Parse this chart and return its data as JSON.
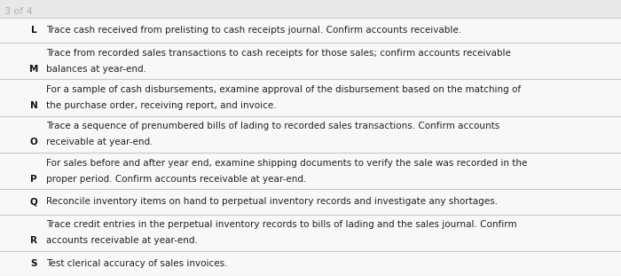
{
  "header": "3 of 4",
  "header_color": "#b0b0b0",
  "background_color": "#f0f0f0",
  "content_bg": "#f7f7f7",
  "rows": [
    {
      "letter": "L",
      "line1": "Trace cash received from prelisting to cash receipts journal. Confirm accounts receivable.",
      "line2": null
    },
    {
      "letter": "M",
      "line1": "Trace from recorded sales transactions to cash receipts for those sales; confirm accounts receivable",
      "line2": "balances at year-end."
    },
    {
      "letter": "N",
      "line1": "For a sample of cash disbursements, examine approval of the disbursement based on the matching of",
      "line2": "the purchase order, receiving report, and invoice."
    },
    {
      "letter": "O",
      "line1": "Trace a sequence of prenumbered bills of lading to recorded sales transactions. Confirm accounts",
      "line2": "receivable at year-end."
    },
    {
      "letter": "P",
      "line1": "For sales before and after year end, examine shipping documents to verify the sale was recorded in the",
      "line2": "proper period. Confirm accounts receivable at year-end."
    },
    {
      "letter": "Q",
      "line1": "Reconcile inventory items on hand to perpetual inventory records and investigate any shortages.",
      "line2": null
    },
    {
      "letter": "R",
      "line1": "Trace credit entries in the perpetual inventory records to bills of lading and the sales journal. Confirm",
      "line2": "accounts receivable at year-end."
    },
    {
      "letter": "S",
      "line1": "Test clerical accuracy of sales invoices.",
      "line2": null
    }
  ],
  "font_size": 7.5,
  "letter_font_size": 7.5,
  "line_color": "#c8c8c8",
  "text_color": "#222222",
  "letter_color": "#111111",
  "header_line_color": "#d0d0d0"
}
